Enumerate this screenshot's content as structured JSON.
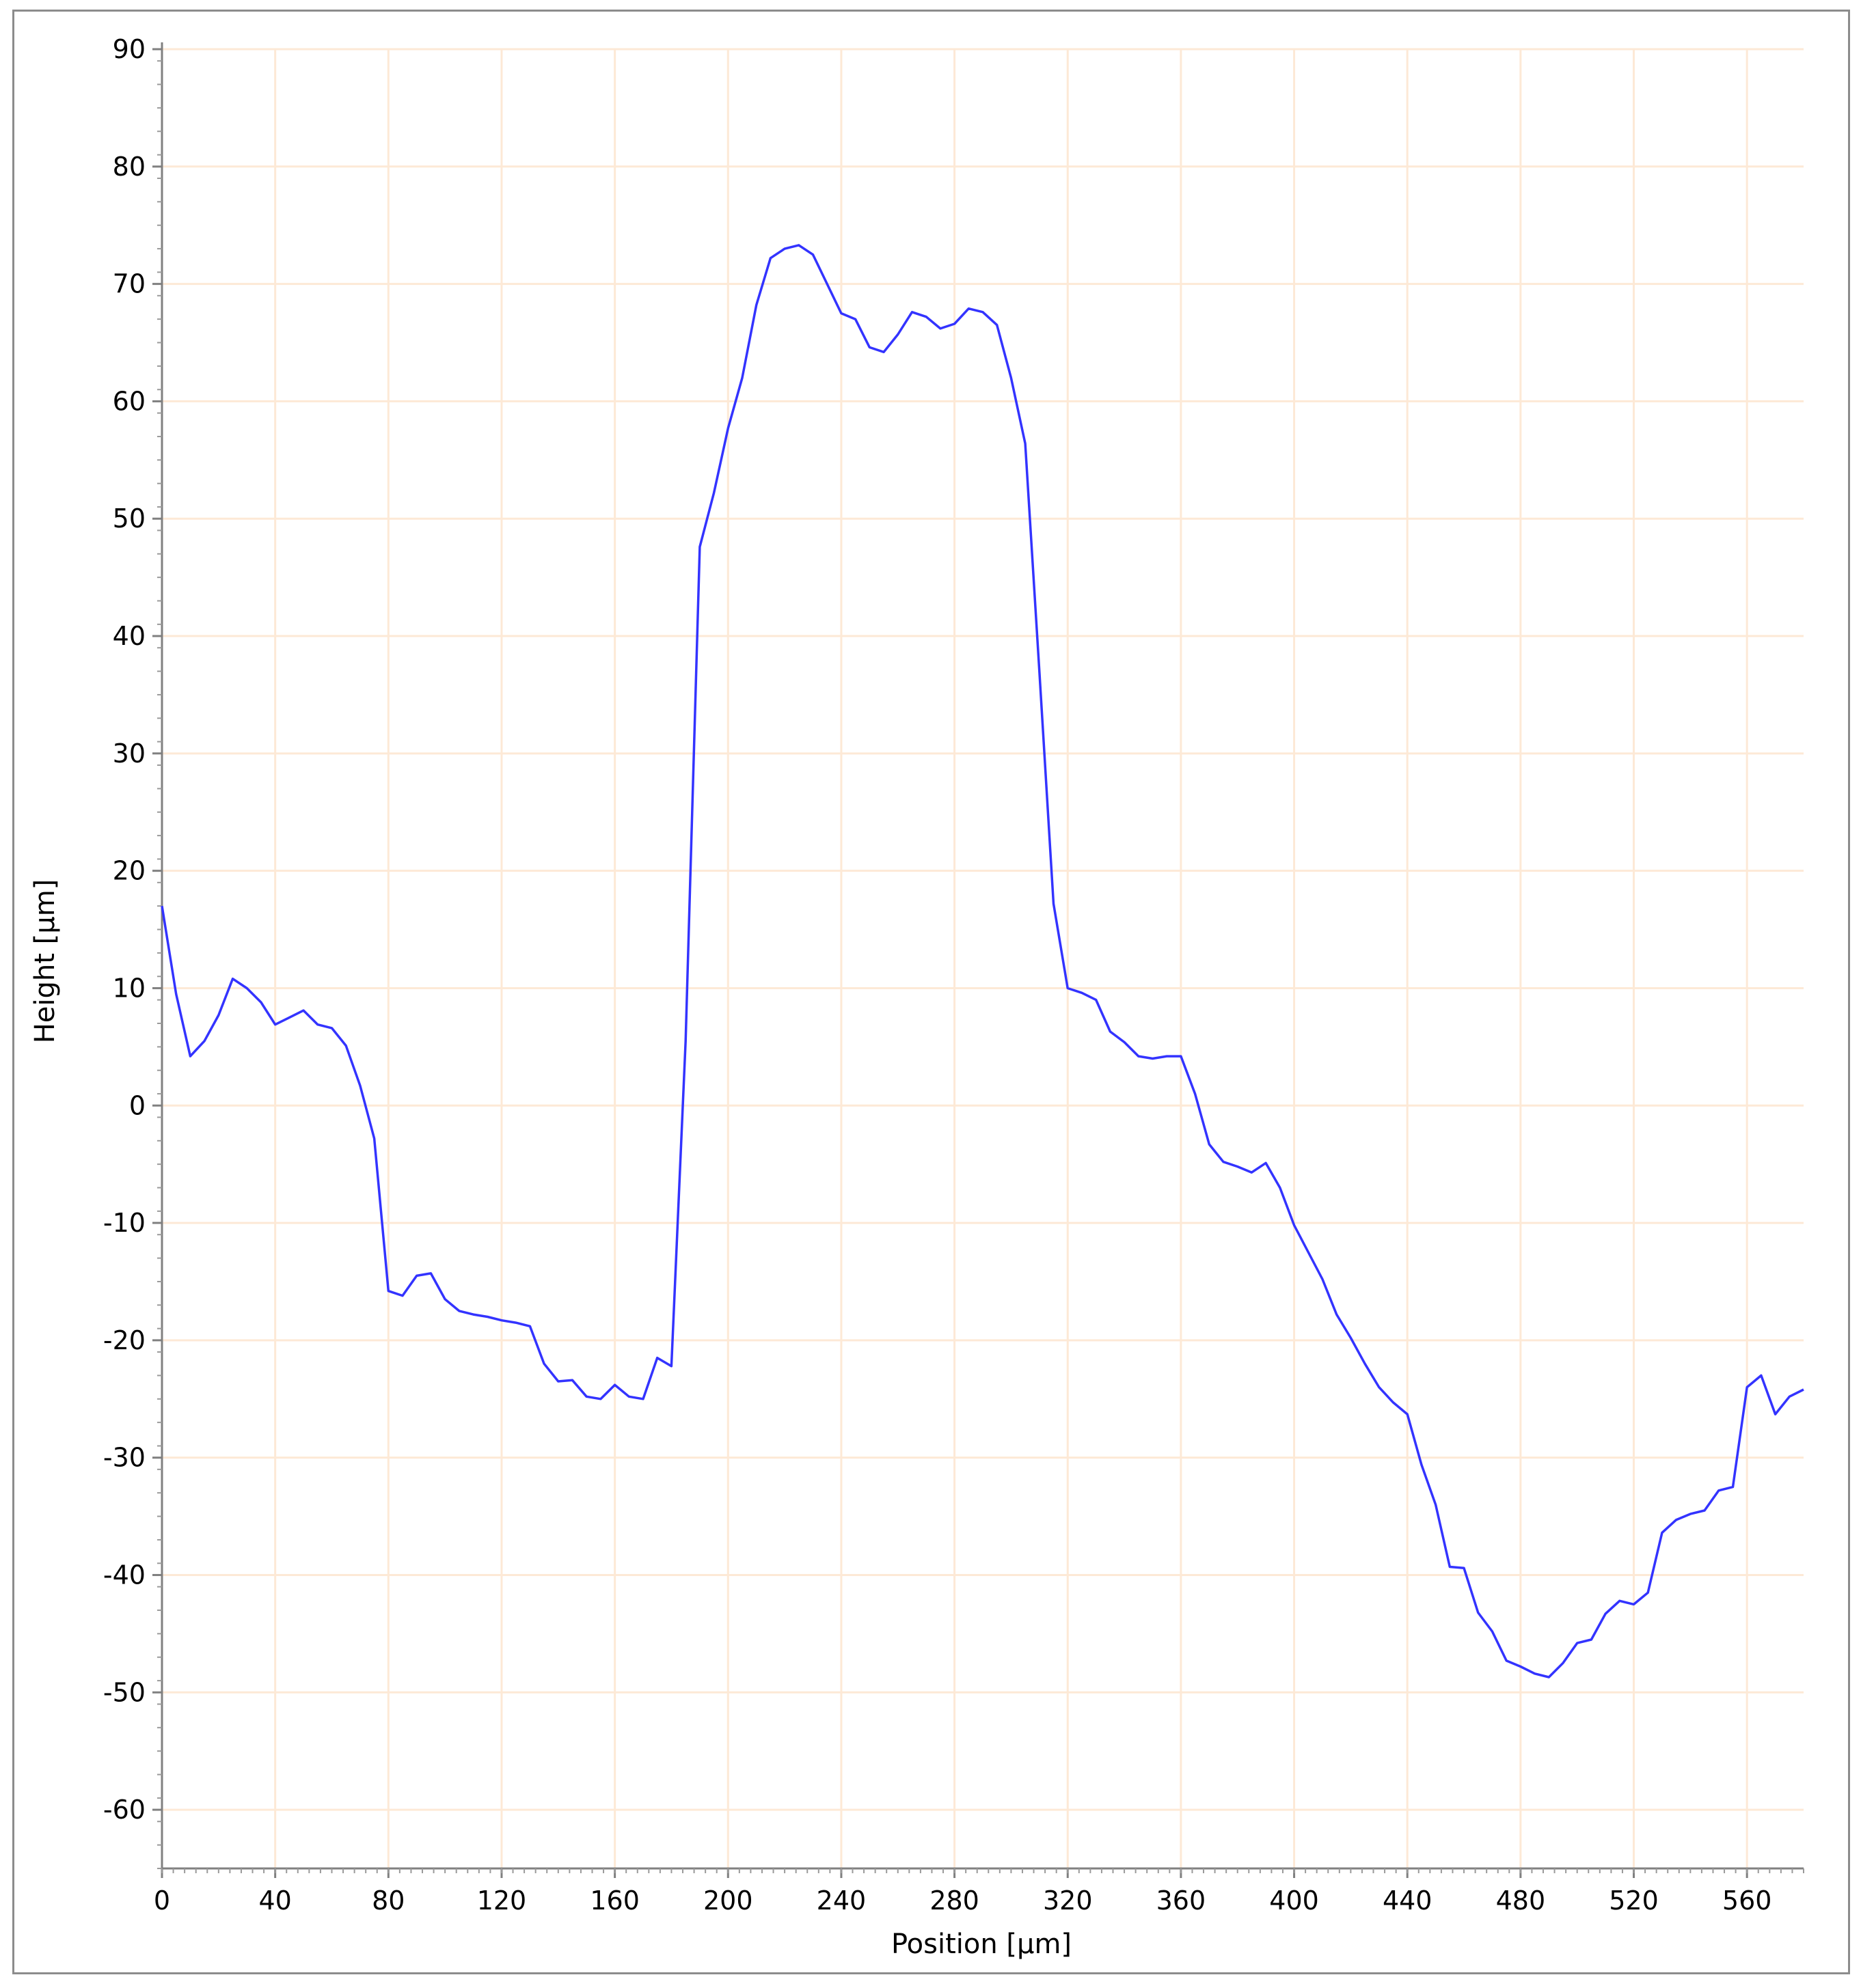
{
  "chart_data": {
    "type": "line",
    "title": "",
    "xlabel": "Position [µm]",
    "ylabel": "Height [µm]",
    "xlim": [
      0,
      580
    ],
    "ylim": [
      -65,
      90
    ],
    "x_ticks": [
      "0",
      "40",
      "80",
      "120",
      "160",
      "200",
      "240",
      "280",
      "320",
      "360",
      "400",
      "440",
      "480",
      "520",
      "560"
    ],
    "y_ticks": [
      "90",
      "80",
      "70",
      "60",
      "50",
      "40",
      "30",
      "20",
      "10",
      "0",
      "-10",
      "-20",
      "-30",
      "-40",
      "-50",
      "-60"
    ],
    "grid": true,
    "grid_color": "#fde9d6",
    "line_color": "#3333ff",
    "series": [
      {
        "x": [
          0,
          5,
          10,
          15,
          20,
          25,
          30,
          35,
          40,
          45,
          50,
          55,
          60,
          65,
          70,
          75,
          80,
          85,
          90,
          95,
          100,
          105,
          110,
          115,
          120,
          125,
          130,
          135,
          140,
          145,
          150,
          155,
          160,
          165,
          170,
          175,
          180,
          185,
          190,
          195,
          200,
          205,
          210,
          215,
          220,
          225,
          230,
          235,
          240,
          245,
          250,
          255,
          260,
          265,
          270,
          275,
          280,
          285,
          290,
          295,
          300,
          305,
          310,
          315,
          320,
          325,
          330,
          335,
          340,
          345,
          350,
          355,
          360,
          365,
          370,
          375,
          380,
          385,
          390,
          395,
          400,
          405,
          410,
          415,
          420,
          425,
          430,
          435,
          440,
          445,
          450,
          455,
          460,
          465,
          470,
          475,
          480,
          485,
          490,
          495,
          500,
          505,
          510,
          515,
          520,
          525,
          530,
          535,
          540,
          545,
          550,
          555,
          560,
          565,
          570,
          575,
          580
        ],
        "y": [
          17,
          9.5,
          4.2,
          5.5,
          7.7,
          10.8,
          10.0,
          8.8,
          6.9,
          7.5,
          8.1,
          6.9,
          6.6,
          5.1,
          1.7,
          -2.8,
          -15.8,
          -16.2,
          -14.5,
          -14.3,
          -16.5,
          -17.5,
          -17.8,
          -18.0,
          -18.3,
          -18.5,
          -18.8,
          -22.0,
          -23.5,
          -23.4,
          -24.8,
          -25.0,
          -23.8,
          -24.8,
          -25.0,
          -21.5,
          -22.2,
          5.5,
          47.6,
          52.2,
          57.7,
          62.0,
          68.2,
          72.2,
          73.0,
          73.3,
          72.5,
          70.0,
          67.5,
          67.0,
          64.6,
          64.2,
          65.7,
          67.6,
          67.2,
          66.2,
          66.6,
          67.9,
          67.6,
          66.5,
          62.0,
          56.4,
          37.0,
          17.2,
          10.0,
          9.6,
          9.0,
          6.3,
          5.4,
          4.2,
          4.0,
          4.2,
          4.2,
          1.0,
          -3.3,
          -4.8,
          -5.2,
          -5.7,
          -4.9,
          -7.0,
          -10.2,
          -12.5,
          -14.8,
          -17.8,
          -19.8,
          -22.0,
          -24.0,
          -25.3,
          -26.3,
          -30.6,
          -34.0,
          -39.3,
          -39.4,
          -43.2,
          -44.8,
          -47.3,
          -47.8,
          -48.4,
          -48.7,
          -47.5,
          -45.8,
          -45.5,
          -43.3,
          -42.2,
          -42.5,
          -41.5,
          -36.4,
          -35.3,
          -34.8,
          -34.5,
          -32.8,
          -32.5,
          -24.0,
          -23.0,
          -26.3,
          -24.8,
          -24.2
        ]
      }
    ]
  }
}
